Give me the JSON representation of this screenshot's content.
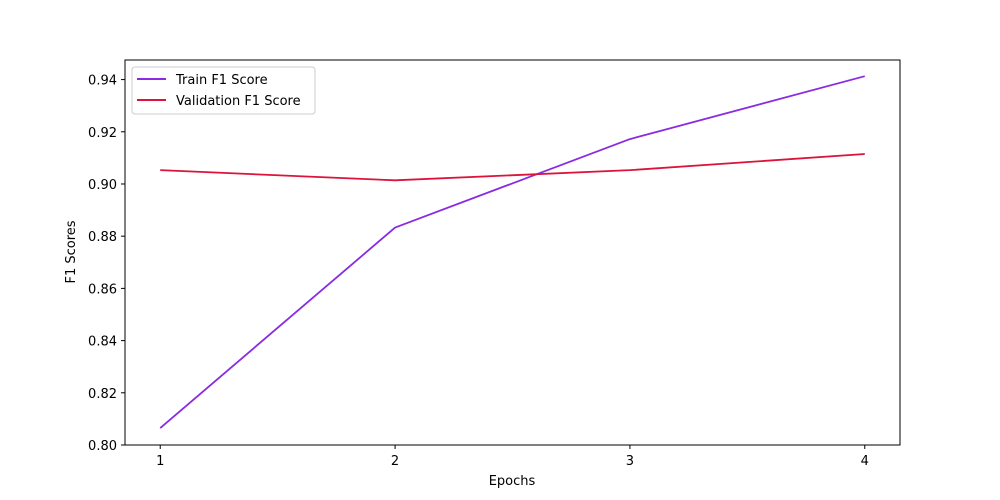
{
  "chart_data": {
    "type": "line",
    "title": "",
    "xlabel": "Epochs",
    "ylabel": "F1 Scores",
    "x": [
      1,
      2,
      3,
      4
    ],
    "x_ticks": [
      1,
      2,
      3,
      4
    ],
    "y_ticks": [
      0.8,
      0.82,
      0.84,
      0.86,
      0.88,
      0.9,
      0.92,
      0.94
    ],
    "xlim": [
      0.85,
      4.15
    ],
    "ylim": [
      0.8,
      0.9475
    ],
    "grid": false,
    "legend_position": "top-left",
    "series": [
      {
        "name": "Train F1 Score",
        "color": "#8a2be2",
        "values": [
          0.8065,
          0.8833,
          0.9172,
          0.9413
        ]
      },
      {
        "name": "Validation F1 Score",
        "color": "#dc143c",
        "values": [
          0.9053,
          0.9014,
          0.9053,
          0.9115
        ]
      }
    ]
  }
}
